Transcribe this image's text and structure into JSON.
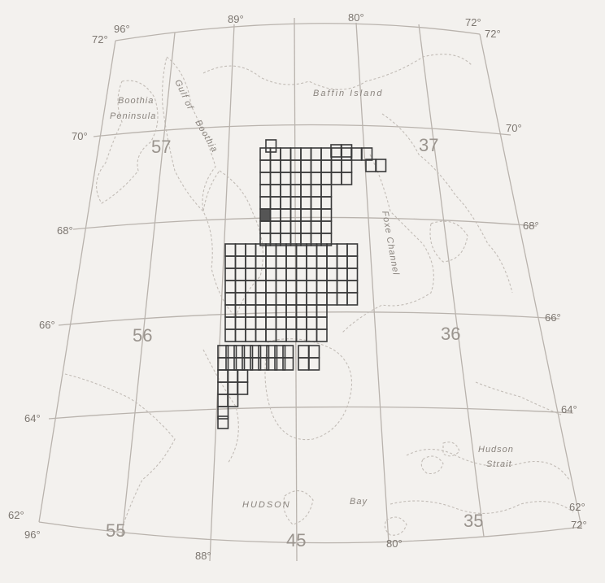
{
  "map": {
    "degree_labels": {
      "lon_top_left": "96°",
      "lon_top_89": "89°",
      "lon_top_80": "80°",
      "lon_top_right": "72°",
      "lat_72_left": "72°",
      "lat_72_right": "72°",
      "lat_70_left": "70°",
      "lat_70_right": "70°",
      "lat_68_left": "68°",
      "lat_68_right": "68°",
      "lat_66_left": "66°",
      "lat_66_right": "66°",
      "lat_64_left": "64°",
      "lat_64_right": "64°",
      "lat_62_left": "62°",
      "lat_62_right": "62°",
      "lon_bottom_96": "96°",
      "lon_bottom_88": "88°",
      "lon_bottom_80": "80°",
      "lon_bottom_72": "72°"
    },
    "zone_labels": {
      "z57": "57",
      "z37": "37",
      "z56": "56",
      "z36": "36",
      "z55": "55",
      "z45": "45",
      "z35": "35"
    },
    "place_labels": {
      "boothia": "Boothia",
      "peninsula": "Peninsula",
      "gulf_of": "Gulf of",
      "boothia_gulf": "Boothia",
      "baffin_island": "Baffin Island",
      "foxe_channel": "Foxe Channel",
      "hudson_strait_1": "Hudson",
      "hudson_strait_2": "Strait",
      "hudson_bay_1": "HUDSON",
      "hudson_bay_2": "Bay"
    },
    "colors": {
      "background": "#f3f1ee",
      "graticule": "#b9b3ad",
      "coastline": "#c2bcb6",
      "survey_grid": "#3a3a3a",
      "highlight_cell": "#555555"
    }
  }
}
